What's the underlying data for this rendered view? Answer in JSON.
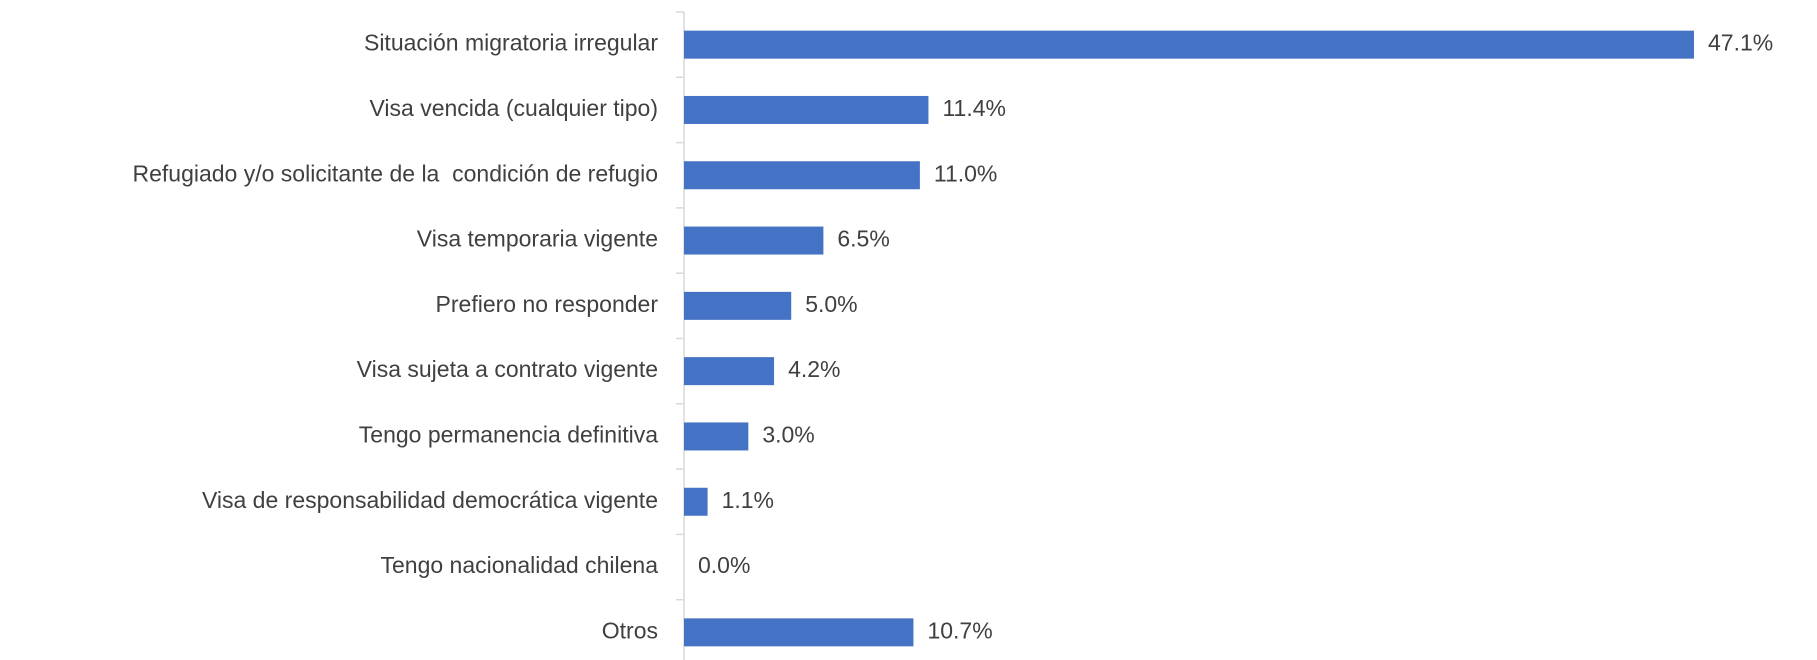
{
  "chart_data": {
    "type": "bar",
    "orientation": "horizontal",
    "categories": [
      "Situación migratoria irregular",
      "Visa vencida (cualquier tipo)",
      "Refugiado y/o solicitante de la  condición de refugio",
      "Visa temporaria vigente",
      "Prefiero no responder",
      "Visa sujeta a contrato vigente",
      "Tengo permanencia definitiva",
      "Visa de responsabilidad democrática vigente",
      "Tengo nacionalidad chilena",
      "Otros"
    ],
    "values": [
      47.1,
      11.4,
      11.0,
      6.5,
      5.0,
      4.2,
      3.0,
      1.1,
      0.0,
      10.7
    ],
    "value_labels": [
      "47.1%",
      "11.4%",
      "11.0%",
      "6.5%",
      "5.0%",
      "4.2%",
      "3.0%",
      "1.1%",
      "0.0%",
      "10.7%"
    ],
    "color": "#4472c4"
  }
}
